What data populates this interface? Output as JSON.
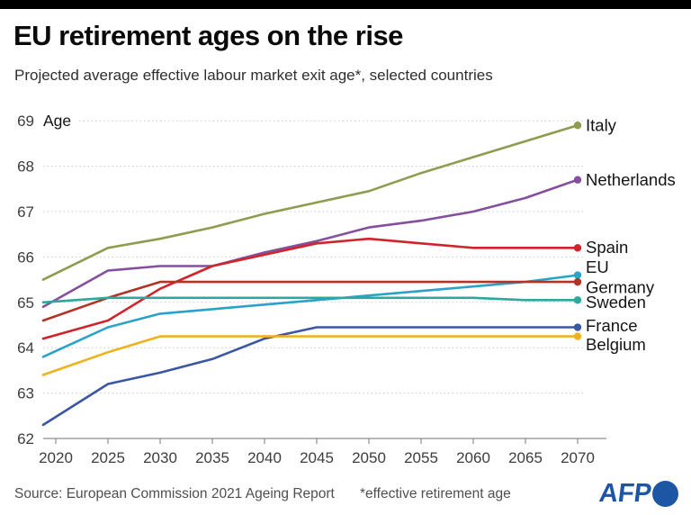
{
  "header": {
    "title": "EU retirement ages on the rise",
    "subtitle": "Projected average effective labour market exit age*, selected countries"
  },
  "footer": {
    "source": "Source: European Commission 2021 Ageing Report",
    "footnote": "*effective retirement age",
    "logo_text": "AFP",
    "logo_color": "#1d56a5"
  },
  "chart_data": {
    "type": "line",
    "title": "EU retirement ages on the rise",
    "subtitle": "Projected average effective labour market exit age*, selected countries",
    "unit_label": "Age",
    "x_tick_labels": [
      "2020",
      "2025",
      "2030",
      "2035",
      "2040",
      "2045",
      "2050",
      "2055",
      "2060",
      "2065",
      "2070"
    ],
    "y_tick_labels": [
      "62",
      "63",
      "64",
      "65",
      "66",
      "67",
      "68",
      "69"
    ],
    "ylim": [
      62,
      69
    ],
    "grid": "horizontal-dotted",
    "legend_position": "right-of-line-ends",
    "colors": {
      "grid": "#c9c9c9",
      "axis": "#8e8e8e",
      "tick_text": "#3d3d3d",
      "label_text": "#141414"
    },
    "series": [
      {
        "name": "Italy",
        "color": "#8e9c4f",
        "values": [
          65.5,
          66.2,
          66.4,
          66.65,
          66.95,
          67.2,
          67.45,
          67.85,
          68.2,
          68.55,
          68.9
        ],
        "label_dy": 0
      },
      {
        "name": "Netherlands",
        "color": "#84509d",
        "values": [
          64.9,
          65.7,
          65.8,
          65.8,
          66.1,
          66.35,
          66.65,
          66.8,
          67.0,
          67.3,
          67.7
        ],
        "label_dy": 0
      },
      {
        "name": "Spain",
        "color": "#d1232a",
        "values": [
          64.2,
          64.6,
          65.3,
          65.8,
          66.05,
          66.3,
          66.4,
          66.3,
          66.2,
          66.2,
          66.2
        ],
        "label_dy": -1
      },
      {
        "name": "EU",
        "color": "#29a3c7",
        "values": [
          63.8,
          64.45,
          64.75,
          64.85,
          64.95,
          65.05,
          65.15,
          65.25,
          65.35,
          65.45,
          65.6
        ],
        "label_dy": -9
      },
      {
        "name": "Germany",
        "color": "#b23327",
        "values": [
          64.6,
          65.1,
          65.45,
          65.45,
          65.45,
          65.45,
          65.45,
          65.45,
          65.45,
          65.45,
          65.45
        ],
        "label_dy": 6
      },
      {
        "name": "Sweden",
        "color": "#2ea89c",
        "values": [
          65.0,
          65.1,
          65.1,
          65.1,
          65.1,
          65.1,
          65.1,
          65.1,
          65.1,
          65.05,
          65.05
        ],
        "label_dy": 2
      },
      {
        "name": "France",
        "color": "#3b57a2",
        "values": [
          62.3,
          63.2,
          63.45,
          63.75,
          64.2,
          64.45,
          64.45,
          64.45,
          64.45,
          64.45,
          64.45
        ],
        "label_dy": -2
      },
      {
        "name": "Belgium",
        "color": "#efb21e",
        "values": [
          63.4,
          63.9,
          64.25,
          64.25,
          64.25,
          64.25,
          64.25,
          64.25,
          64.25,
          64.25,
          64.25
        ],
        "label_dy": 9
      }
    ]
  }
}
